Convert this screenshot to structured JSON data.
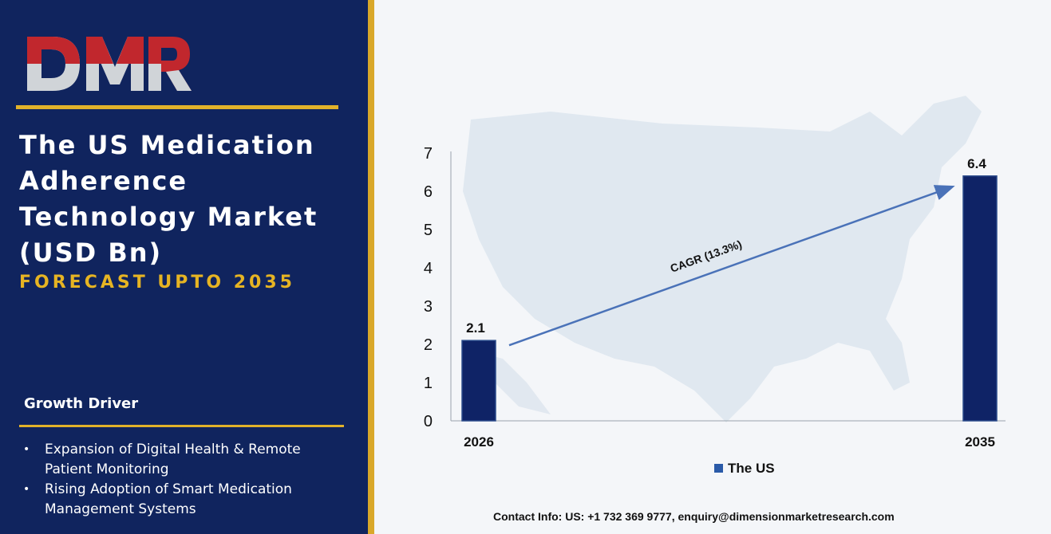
{
  "brand": {
    "logo_text": "DMR"
  },
  "header": {
    "title": "The US Medication Adherence Technology Market (USD Bn)",
    "subtitle": "FORECAST UPTO 2035"
  },
  "growth_driver": {
    "heading": "Growth Driver",
    "items": [
      {
        "text": "Expansion of Digital Health & Remote Patient Monitoring"
      },
      {
        "text": "Rising Adoption of Smart Medication Management Systems"
      }
    ]
  },
  "chart_data": {
    "type": "bar",
    "categories": [
      "2026",
      "2035"
    ],
    "series": [
      {
        "name": "The US",
        "values": [
          2.1,
          6.4
        ],
        "color": "#0f2366"
      }
    ],
    "ylim": [
      0,
      7
    ],
    "yticks": [
      0,
      1,
      2,
      3,
      4,
      5,
      6,
      7
    ],
    "annotation": "CAGR (13.3%)",
    "legend_position": "bottom"
  },
  "footer": {
    "contact": "Contact Info: US: +1 732 369 9777, enquiry@dimensionmarketresearch.com"
  },
  "colors": {
    "navy": "#10245e",
    "gold": "#e2b22a",
    "bar": "#0f2366",
    "arrow": "#4a72b8"
  }
}
